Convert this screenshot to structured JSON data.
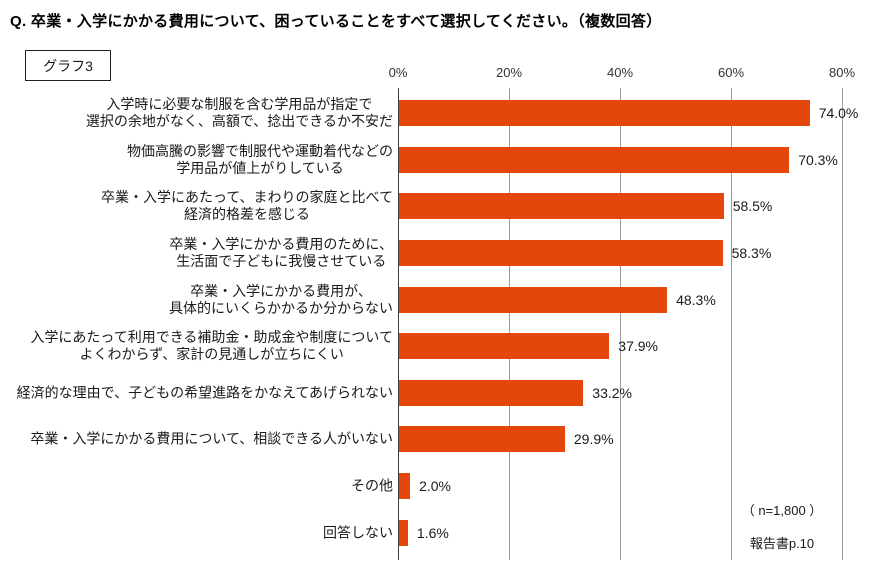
{
  "title": "Q. 卒業・入学にかかる費用について、困っていることをすべて選択してください。（複数回答）",
  "graph_label": "グラフ3",
  "annotations": {
    "sample_size": "（ n=1,800 ）",
    "report_ref": "報告書p.10"
  },
  "chart_data": {
    "type": "bar",
    "orientation": "horizontal",
    "title": "卒業・入学にかかる費用について、困っていること（複数回答）",
    "xlabel": "",
    "ylabel": "",
    "grid": true,
    "legend": false,
    "bar_color": "#e4470c",
    "axis": {
      "min": 0,
      "max": 80,
      "tick_values": [
        0,
        20,
        40,
        60,
        80
      ],
      "ticks": [
        "0%",
        "20%",
        "40%",
        "60%",
        "80%"
      ]
    },
    "categories": [
      "入学時に必要な制服を含む学用品が指定で選択の余地がなく、高額で、捻出できるか不安だ",
      "物価高騰の影響で制服代や運動着代などの学用品が値上がりしている",
      "卒業・入学にあたって、まわりの家庭と比べて経済的格差を感じる",
      "卒業・入学にかかる費用のために、生活面で子どもに我慢させている",
      "卒業・入学にかかる費用が、具体的にいくらかかるか分からない",
      "入学にあたって利用できる補助金・助成金や制度についてよくわからず、家計の見通しが立ちにくい",
      "経済的な理由で、子どもの希望進路をかなえてあげられない",
      "卒業・入学にかかる費用について、相談できる人がいない",
      "その他",
      "回答しない"
    ],
    "display_labels": [
      "入学時に必要な制服を含む学用品が指定で\n選択の余地がなく、高額で、捻出できるか不安だ",
      "物価高騰の影響で制服代や運動着代などの\n学用品が値上がりしている",
      "卒業・入学にあたって、まわりの家庭と比べて\n経済的格差を感じる",
      "卒業・入学にかかる費用のために、\n生活面で子どもに我慢させている",
      "卒業・入学にかかる費用が、\n具体的にいくらかかるか分からない",
      "入学にあたって利用できる補助金・助成金や制度について\nよくわからず、家計の見通しが立ちにくい",
      "経済的な理由で、子どもの希望進路をかなえてあげられない",
      "卒業・入学にかかる費用について、相談できる人がいない",
      "その他",
      "回答しない"
    ],
    "values": [
      74.0,
      70.3,
      58.5,
      58.3,
      48.3,
      37.9,
      33.2,
      29.9,
      2.0,
      1.6
    ],
    "value_labels": [
      "74.0%",
      "70.3%",
      "58.5%",
      "58.3%",
      "48.3%",
      "37.9%",
      "33.2%",
      "29.9%",
      "2.0%",
      "1.6%"
    ]
  }
}
